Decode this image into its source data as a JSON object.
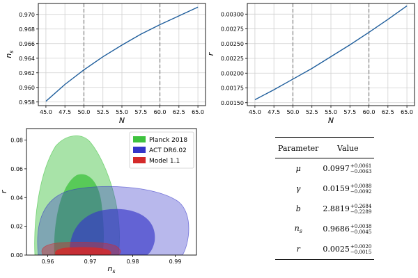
{
  "chart_data": [
    {
      "type": "line",
      "xlabel": "N",
      "ylabel": "n_s",
      "xlim": [
        44,
        66
      ],
      "ylim": [
        0.9575,
        0.9715
      ],
      "xticks": [
        "45.0",
        "47.5",
        "50.0",
        "52.5",
        "55.0",
        "57.5",
        "60.0",
        "62.5",
        "65.0"
      ],
      "yticks": [
        "0.958",
        "0.960",
        "0.962",
        "0.964",
        "0.966",
        "0.968",
        "0.970"
      ],
      "grid": true,
      "vlines": [
        50,
        60
      ],
      "series": [
        {
          "x": [
            45,
            47.5,
            50,
            52.5,
            55,
            57.5,
            60,
            62.5,
            65
          ],
          "values": [
            0.9581,
            0.9604,
            0.9624,
            0.9642,
            0.9658,
            0.9673,
            0.9686,
            0.9698,
            0.971
          ],
          "color": "#1f5e9c"
        }
      ]
    },
    {
      "type": "line",
      "xlabel": "N",
      "ylabel": "r",
      "xlim": [
        44,
        66
      ],
      "ylim": [
        0.00145,
        0.00318
      ],
      "xticks": [
        "45.0",
        "47.5",
        "50.0",
        "52.5",
        "55.0",
        "57.5",
        "60.0",
        "62.5",
        "65.0"
      ],
      "yticks": [
        "0.00150",
        "0.00175",
        "0.00200",
        "0.00225",
        "0.00250",
        "0.00275",
        "0.00300"
      ],
      "grid": true,
      "vlines": [
        50,
        60
      ],
      "series": [
        {
          "x": [
            45,
            47.5,
            50,
            52.5,
            55,
            57.5,
            60,
            62.5,
            65
          ],
          "values": [
            0.00155,
            0.00172,
            0.0019,
            0.00208,
            0.00228,
            0.00248,
            0.00269,
            0.00291,
            0.00314
          ],
          "color": "#1f5e9c"
        }
      ]
    },
    {
      "type": "area",
      "xlabel": "n_s",
      "ylabel": "r",
      "xlim": [
        0.955,
        0.995
      ],
      "ylim": [
        0.0,
        0.088
      ],
      "xticks": [
        "0.96",
        "0.97",
        "0.98",
        "0.99"
      ],
      "yticks": [
        "0.00",
        "0.02",
        "0.04",
        "0.06",
        "0.08"
      ],
      "legend_position": "top-right",
      "series": [
        {
          "name": "Planck 2018",
          "color": "#3ec23e"
        },
        {
          "name": "ACT DR6.02",
          "color": "#3535c8"
        },
        {
          "name": "Model 1.1",
          "color": "#d42a2a"
        }
      ]
    },
    {
      "type": "table",
      "columns": [
        "Parameter",
        "Value"
      ],
      "rows": [
        {
          "name": "μ",
          "value": "0.0997",
          "plus": "+0.0061",
          "minus": "−0.0063"
        },
        {
          "name": "γ",
          "value": "0.0159",
          "plus": "+0.0088",
          "minus": "−0.0092"
        },
        {
          "name": "b",
          "value": "2.8819",
          "plus": "+0.2684",
          "minus": "−0.2289"
        },
        {
          "name": "n",
          "sub": "s",
          "value": "0.9686",
          "plus": "+0.0038",
          "minus": "−0.0045"
        },
        {
          "name": "r",
          "value": "0.0025",
          "plus": "+0.0020",
          "minus": "−0.0015"
        }
      ]
    }
  ]
}
